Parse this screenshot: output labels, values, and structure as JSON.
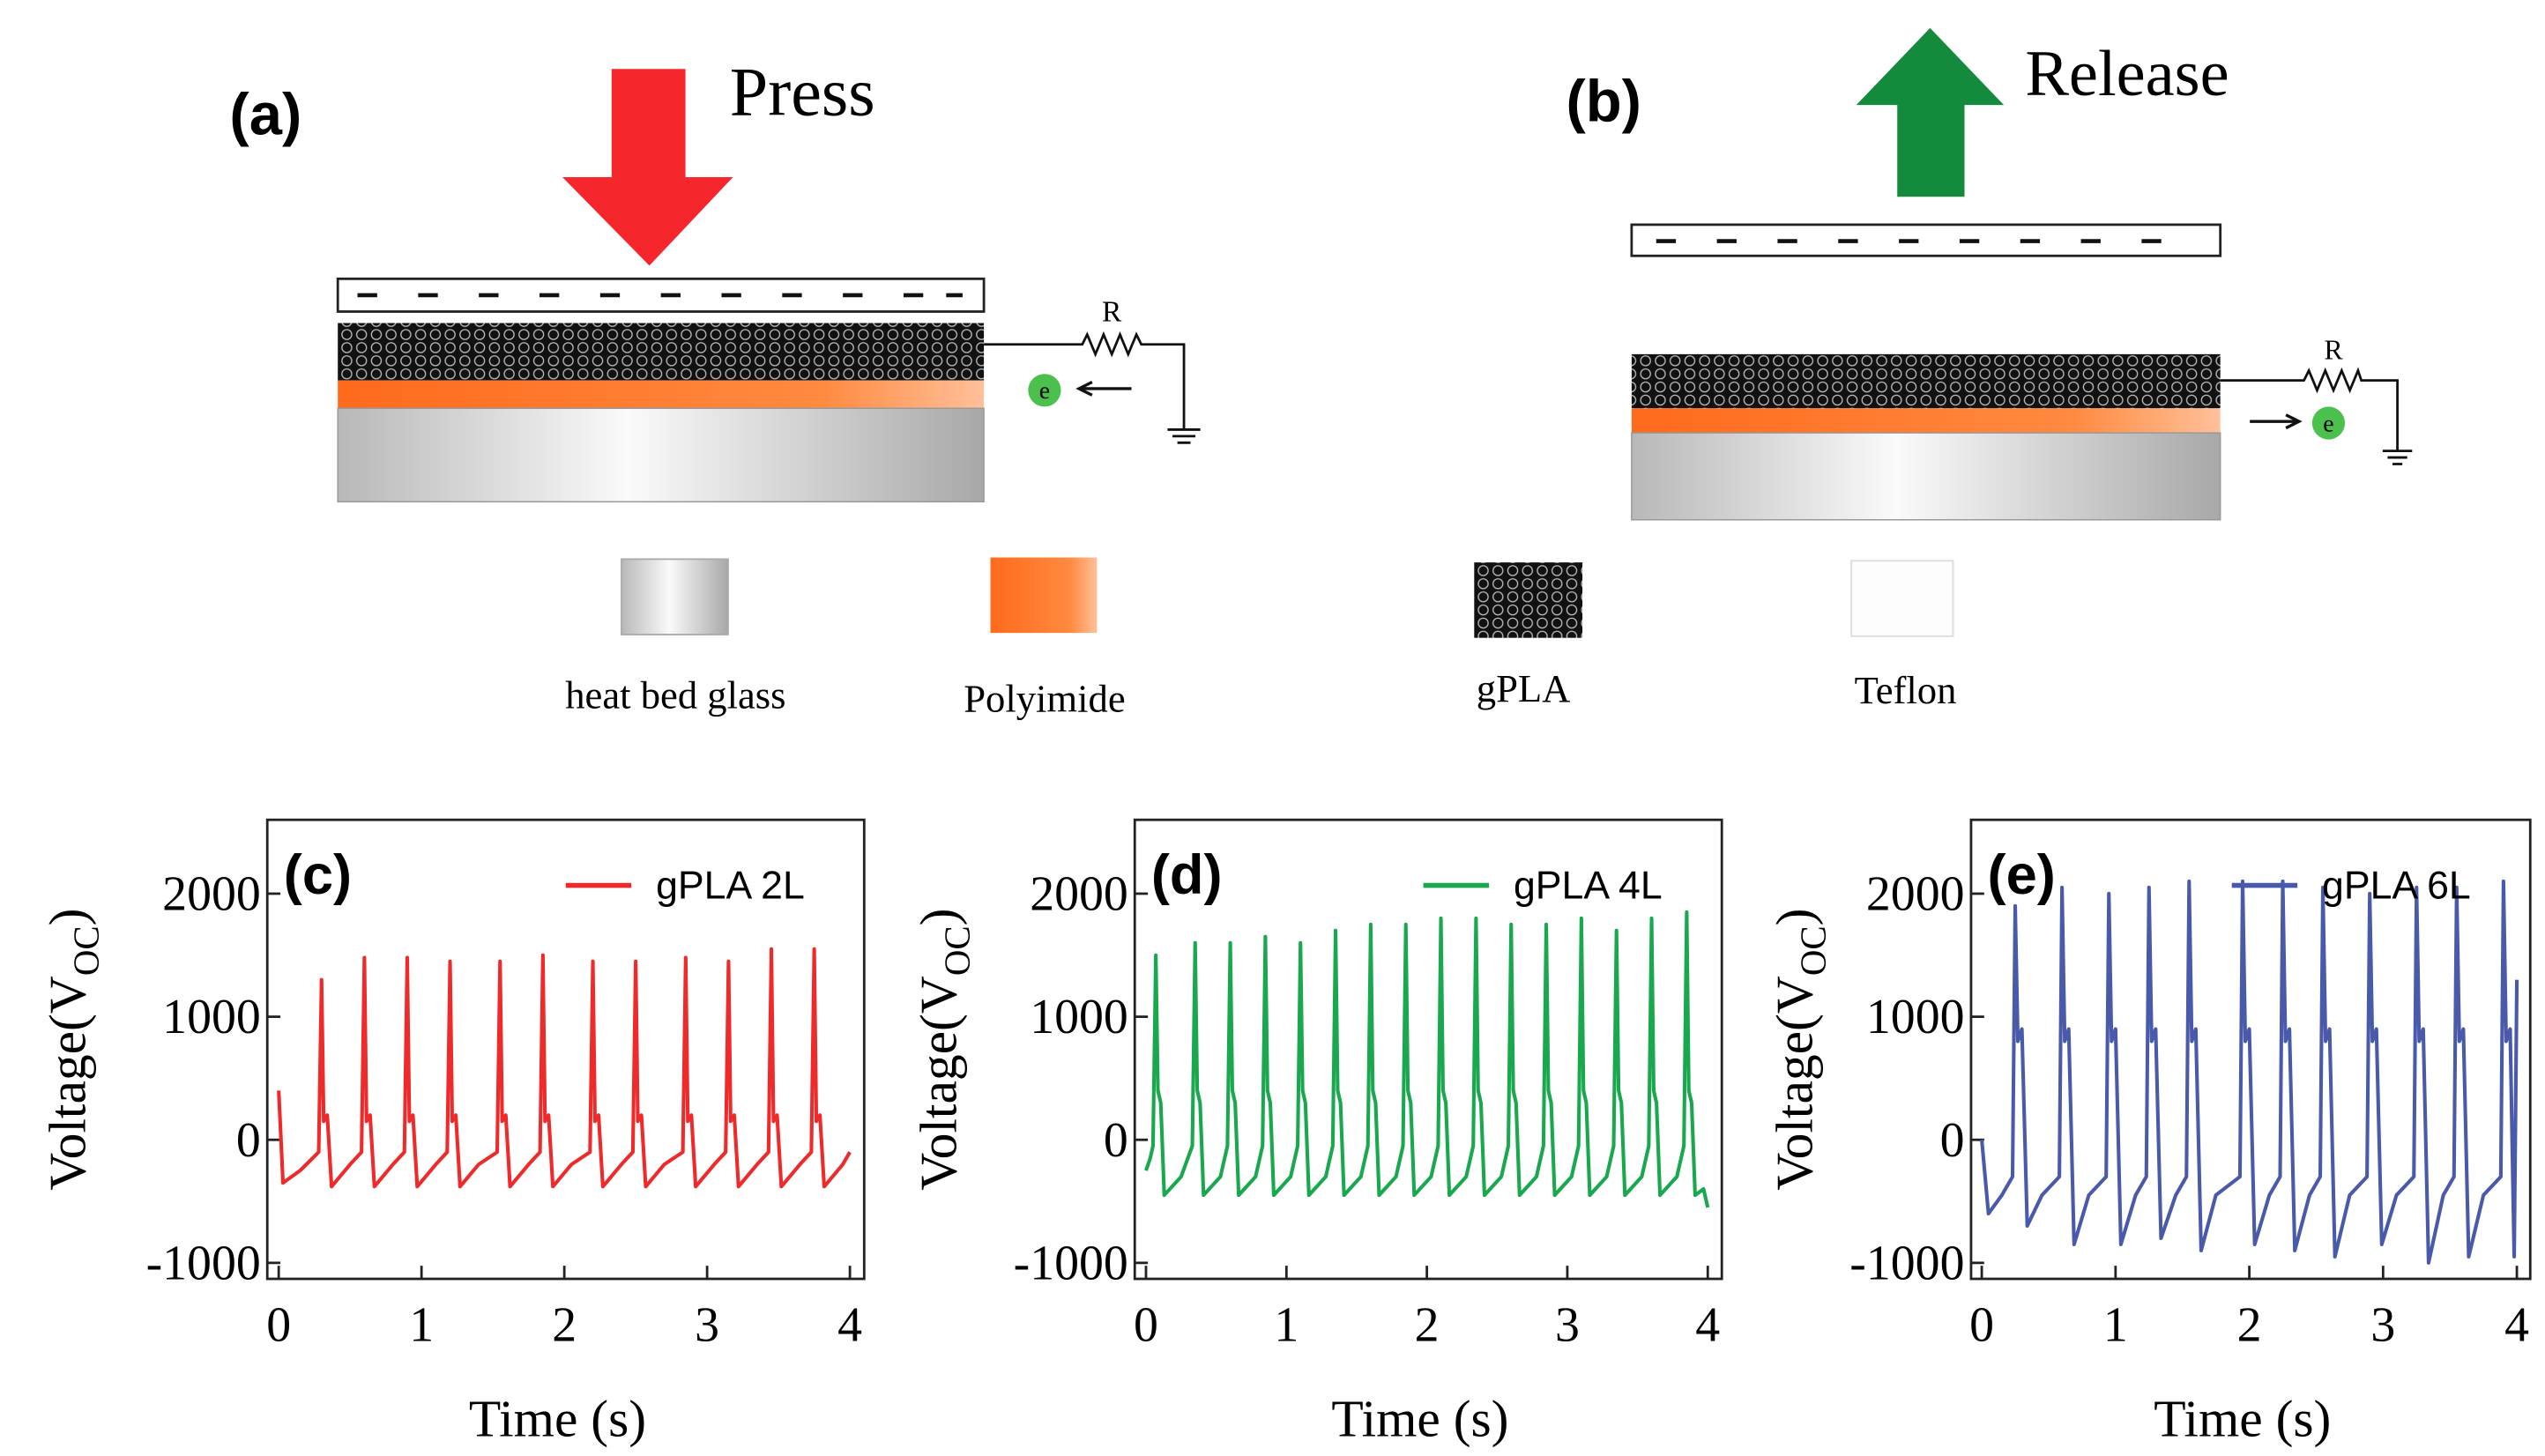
{
  "diagram": {
    "panel_a": "(a)",
    "press": "Press",
    "resistor_a": "R",
    "electron_a": "e",
    "panel_b": "(b)",
    "release": "Release",
    "resistor_b": "R",
    "electron_b": "e",
    "legend": [
      "heat bed glass",
      "Polyimide",
      "gPLA",
      "Teflon"
    ]
  },
  "chart_data": [
    {
      "type": "line",
      "panel_label": "(c)",
      "x_label": "Time (s)",
      "y_label": {
        "main": "Voltage(V",
        "sub": "OC",
        "end": ")"
      },
      "xlim": [
        -0.08,
        4.1
      ],
      "xticks": [
        0,
        1,
        2,
        3,
        4
      ],
      "ylim": [
        -1130,
        2600
      ],
      "yticks": [
        -1000,
        0,
        1000,
        2000
      ],
      "legend": "upper right",
      "x": [
        0,
        0.03,
        0.15,
        0.28,
        0.3,
        0.315,
        0.34,
        0.37,
        0.5,
        0.58,
        0.6,
        0.615,
        0.64,
        0.67,
        0.8,
        0.88,
        0.9,
        0.915,
        0.94,
        0.97,
        1.1,
        1.18,
        1.2,
        1.215,
        1.24,
        1.27,
        1.4,
        1.53,
        1.55,
        1.565,
        1.59,
        1.62,
        1.75,
        1.83,
        1.85,
        1.865,
        1.89,
        1.92,
        2.05,
        2.18,
        2.2,
        2.215,
        2.24,
        2.27,
        2.4,
        2.48,
        2.5,
        2.515,
        2.54,
        2.57,
        2.7,
        2.83,
        2.85,
        2.865,
        2.89,
        2.92,
        3.05,
        3.13,
        3.15,
        3.165,
        3.19,
        3.22,
        3.35,
        3.43,
        3.45,
        3.465,
        3.49,
        3.52,
        3.65,
        3.73,
        3.75,
        3.765,
        3.79,
        3.82,
        3.95,
        4
      ],
      "series": [
        {
          "name": "gPLA 2L",
          "color": "#ee2a2a",
          "values": [
            400,
            -350,
            -250,
            -100,
            1300,
            150,
            200,
            -380,
            -200,
            -100,
            1480,
            150,
            200,
            -380,
            -200,
            -100,
            1480,
            150,
            200,
            -380,
            -200,
            -100,
            1450,
            150,
            200,
            -380,
            -200,
            -100,
            1450,
            150,
            200,
            -380,
            -200,
            -100,
            1500,
            150,
            200,
            -380,
            -200,
            -100,
            1450,
            150,
            200,
            -380,
            -200,
            -100,
            1450,
            150,
            200,
            -380,
            -200,
            -100,
            1480,
            150,
            200,
            -380,
            -200,
            -100,
            1450,
            150,
            200,
            -380,
            -200,
            -100,
            1550,
            150,
            200,
            -380,
            -200,
            -100,
            1550,
            150,
            200,
            -380,
            -200,
            -100
          ]
        }
      ]
    },
    {
      "type": "line",
      "panel_label": "(d)",
      "x_label": "Time (s)",
      "y_label": {
        "main": "Voltage(V",
        "sub": "OC",
        "end": ")"
      },
      "xlim": [
        -0.08,
        4.1
      ],
      "xticks": [
        0,
        1,
        2,
        3,
        4
      ],
      "ylim": [
        -1130,
        2600
      ],
      "yticks": [
        -1000,
        0,
        1000,
        2000
      ],
      "legend": "upper right",
      "x": [
        0,
        0.03,
        0.05,
        0.07,
        0.085,
        0.105,
        0.13,
        0.25,
        0.33,
        0.35,
        0.365,
        0.385,
        0.41,
        0.53,
        0.58,
        0.6,
        0.615,
        0.635,
        0.66,
        0.78,
        0.83,
        0.85,
        0.865,
        0.885,
        0.91,
        1.03,
        1.08,
        1.1,
        1.115,
        1.135,
        1.16,
        1.28,
        1.33,
        1.35,
        1.365,
        1.385,
        1.41,
        1.53,
        1.58,
        1.6,
        1.615,
        1.635,
        1.66,
        1.78,
        1.83,
        1.85,
        1.865,
        1.885,
        1.91,
        2.03,
        2.08,
        2.1,
        2.115,
        2.135,
        2.16,
        2.28,
        2.33,
        2.35,
        2.365,
        2.385,
        2.41,
        2.53,
        2.58,
        2.6,
        2.615,
        2.635,
        2.66,
        2.78,
        2.83,
        2.85,
        2.865,
        2.885,
        2.91,
        3.03,
        3.08,
        3.1,
        3.115,
        3.135,
        3.16,
        3.28,
        3.33,
        3.35,
        3.365,
        3.385,
        3.41,
        3.53,
        3.58,
        3.6,
        3.615,
        3.635,
        3.66,
        3.78,
        3.83,
        3.85,
        3.865,
        3.885,
        3.91,
        3.97,
        4
      ],
      "series": [
        {
          "name": "gPLA 4L",
          "color": "#1aa84e",
          "values": [
            -250,
            -150,
            -50,
            1500,
            400,
            300,
            -450,
            -300,
            -50,
            1600,
            400,
            300,
            -450,
            -300,
            -50,
            1600,
            400,
            300,
            -450,
            -300,
            -50,
            1650,
            400,
            300,
            -450,
            -300,
            -50,
            1600,
            400,
            300,
            -450,
            -300,
            -50,
            1700,
            400,
            300,
            -450,
            -300,
            -50,
            1750,
            400,
            300,
            -450,
            -300,
            -50,
            1750,
            400,
            300,
            -450,
            -300,
            -50,
            1800,
            400,
            300,
            -450,
            -300,
            -50,
            1800,
            400,
            300,
            -450,
            -300,
            -50,
            1750,
            400,
            300,
            -450,
            -300,
            -50,
            1750,
            400,
            300,
            -450,
            -300,
            -50,
            1800,
            400,
            300,
            -450,
            -300,
            -50,
            1700,
            400,
            300,
            -450,
            -300,
            -50,
            1800,
            400,
            300,
            -450,
            -300,
            -50,
            1850,
            400,
            300,
            -450,
            -400,
            -550
          ]
        }
      ]
    },
    {
      "type": "line",
      "panel_label": "(e)",
      "x_label": "Time (s)",
      "y_label": {
        "main": "Voltage(V",
        "sub": "OC",
        "end": ")"
      },
      "xlim": [
        -0.08,
        4.1
      ],
      "xticks": [
        0,
        1,
        2,
        3,
        4
      ],
      "ylim": [
        -1130,
        2600
      ],
      "yticks": [
        -1000,
        0,
        1000,
        2000
      ],
      "legend": "upper right",
      "x": [
        0,
        0.05,
        0.15,
        0.23,
        0.25,
        0.27,
        0.3,
        0.34,
        0.45,
        0.58,
        0.6,
        0.62,
        0.65,
        0.69,
        0.8,
        0.93,
        0.95,
        0.97,
        1,
        1.04,
        1.15,
        1.23,
        1.25,
        1.27,
        1.3,
        1.34,
        1.45,
        1.53,
        1.55,
        1.57,
        1.6,
        1.64,
        1.75,
        1.93,
        1.95,
        1.97,
        2,
        2.04,
        2.15,
        2.23,
        2.25,
        2.27,
        2.3,
        2.34,
        2.45,
        2.53,
        2.55,
        2.57,
        2.6,
        2.64,
        2.75,
        2.88,
        2.9,
        2.92,
        2.95,
        2.99,
        3.1,
        3.23,
        3.25,
        3.27,
        3.3,
        3.34,
        3.45,
        3.53,
        3.55,
        3.57,
        3.6,
        3.64,
        3.75,
        3.88,
        3.9,
        3.92,
        3.95,
        3.98,
        4
      ],
      "series": [
        {
          "name": "gPLA 6L",
          "color": "#4a5aaa",
          "values": [
            0,
            -600,
            -450,
            -300,
            1900,
            800,
            900,
            -700,
            -450,
            -300,
            2050,
            800,
            900,
            -850,
            -450,
            -300,
            2000,
            800,
            900,
            -850,
            -450,
            -300,
            2050,
            800,
            900,
            -800,
            -450,
            -300,
            2100,
            800,
            900,
            -900,
            -450,
            -300,
            2100,
            800,
            900,
            -850,
            -450,
            -300,
            2100,
            800,
            900,
            -900,
            -450,
            -300,
            2050,
            800,
            900,
            -950,
            -450,
            -300,
            2000,
            800,
            900,
            -850,
            -450,
            -300,
            2050,
            800,
            900,
            -1000,
            -450,
            -300,
            2050,
            800,
            900,
            -950,
            -450,
            -300,
            2100,
            800,
            900,
            -950,
            1300
          ]
        }
      ]
    }
  ]
}
